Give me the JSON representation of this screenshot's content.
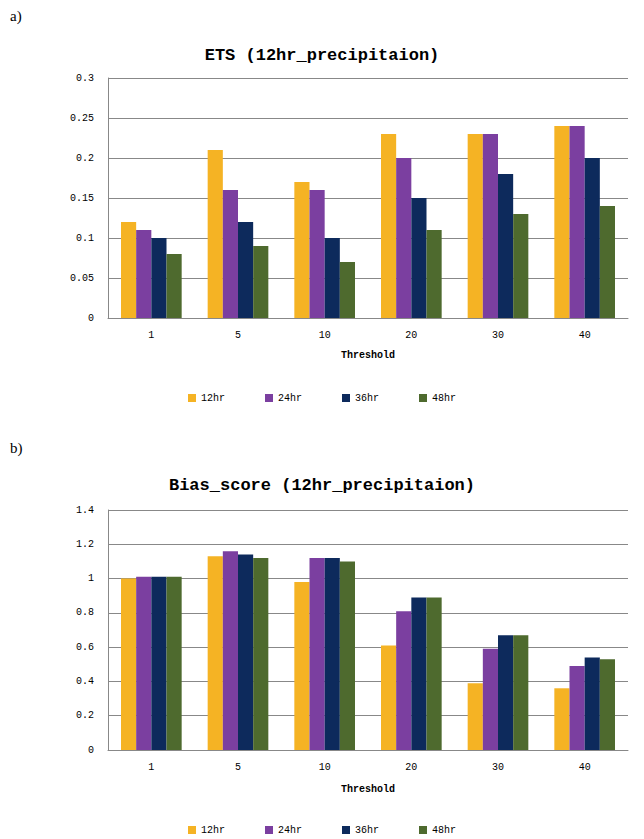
{
  "chart_data": [
    {
      "type": "bar",
      "annotation": "a)",
      "title": "ETS (12hr_precipitaion)",
      "x_label": "Threshold",
      "categories": [
        "1",
        "5",
        "10",
        "20",
        "30",
        "40"
      ],
      "series": [
        {
          "name": "12hr",
          "color": "#f5b324",
          "values": [
            0.12,
            0.21,
            0.17,
            0.23,
            0.23,
            0.24
          ]
        },
        {
          "name": "24hr",
          "color": "#7b3fa0",
          "values": [
            0.11,
            0.16,
            0.16,
            0.2,
            0.23,
            0.24
          ]
        },
        {
          "name": "36hr",
          "color": "#0d2a5c",
          "values": [
            0.1,
            0.12,
            0.1,
            0.15,
            0.18,
            0.2
          ]
        },
        {
          "name": "48hr",
          "color": "#4e6a2e",
          "values": [
            0.08,
            0.09,
            0.07,
            0.11,
            0.13,
            0.14
          ]
        }
      ],
      "ylim": [
        0,
        0.3
      ],
      "yticks": [
        0,
        0.05,
        0.1,
        0.15,
        0.2,
        0.25,
        0.3
      ],
      "grid": true,
      "legend": "bottom"
    },
    {
      "type": "bar",
      "annotation": "b)",
      "title": "Bias_score (12hr_precipitaion)",
      "x_label": "Threshold",
      "categories": [
        "1",
        "5",
        "10",
        "20",
        "30",
        "40"
      ],
      "series": [
        {
          "name": "12hr",
          "color": "#f5b324",
          "values": [
            1.0,
            1.13,
            0.98,
            0.61,
            0.39,
            0.36
          ]
        },
        {
          "name": "24hr",
          "color": "#7b3fa0",
          "values": [
            1.01,
            1.16,
            1.12,
            0.81,
            0.59,
            0.49
          ]
        },
        {
          "name": "36hr",
          "color": "#0d2a5c",
          "values": [
            1.01,
            1.14,
            1.12,
            0.89,
            0.67,
            0.54
          ]
        },
        {
          "name": "48hr",
          "color": "#4e6a2e",
          "values": [
            1.01,
            1.12,
            1.1,
            0.89,
            0.67,
            0.53
          ]
        }
      ],
      "ylim": [
        0,
        1.4
      ],
      "yticks": [
        0,
        0.2,
        0.4,
        0.6,
        0.8,
        1,
        1.2,
        1.4
      ],
      "grid": true,
      "legend": "bottom"
    }
  ]
}
